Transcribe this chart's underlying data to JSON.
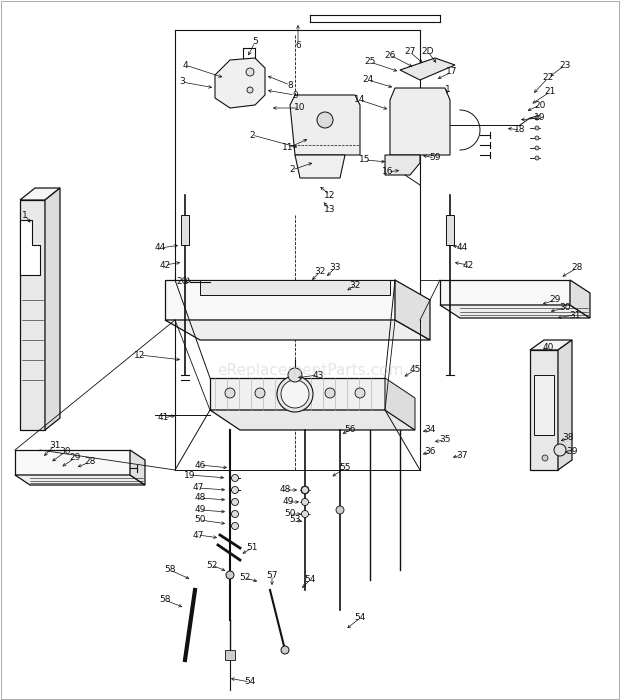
{
  "bg_color": "#ffffff",
  "watermark": "eReplacementParts.com",
  "fig_width": 6.2,
  "fig_height": 7.0,
  "dpi": 100,
  "lc": "#111111",
  "lfs": 6.5
}
